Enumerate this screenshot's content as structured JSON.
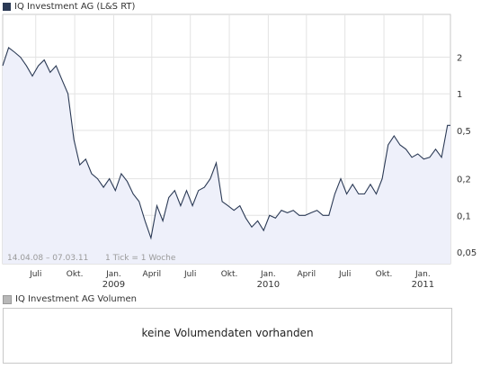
{
  "price_chart": {
    "legend_label": "IQ Investment AG (L&S RT)",
    "series_color": "#2b3a55",
    "fill_color": "#eef0fa",
    "date_range": "14.04.08 – 07.03.11",
    "tick_info": "1 Tick = 1 Woche"
  },
  "volume_chart": {
    "legend_label": "IQ Investment AG Volumen",
    "message": "keine Volumendaten vorhanden"
  },
  "chart_data": {
    "type": "area",
    "yscale": "log",
    "ylim": [
      0.04,
      4.5
    ],
    "xlim": [
      "2008-04-14",
      "2011-03-07"
    ],
    "grid": true,
    "yticks": [
      {
        "value": 2,
        "label": "2"
      },
      {
        "value": 1,
        "label": "1"
      },
      {
        "value": 0.5,
        "label": "0,5"
      },
      {
        "value": 0.2,
        "label": "0,2"
      },
      {
        "value": 0.1,
        "label": "0,1"
      },
      {
        "value": 0.05,
        "label": "0,05"
      }
    ],
    "xticks": [
      {
        "date": "2008-07-01",
        "label": "Juli"
      },
      {
        "date": "2008-10-01",
        "label": "Okt."
      },
      {
        "date": "2009-01-01",
        "label": "Jan.",
        "year": "2009"
      },
      {
        "date": "2009-04-01",
        "label": "April"
      },
      {
        "date": "2009-07-01",
        "label": "Juli"
      },
      {
        "date": "2009-10-01",
        "label": "Okt."
      },
      {
        "date": "2010-01-01",
        "label": "Jan.",
        "year": "2010"
      },
      {
        "date": "2010-04-01",
        "label": "April"
      },
      {
        "date": "2010-07-01",
        "label": "Juli"
      },
      {
        "date": "2010-10-01",
        "label": "Okt."
      },
      {
        "date": "2011-01-01",
        "label": "Jan.",
        "year": "2011"
      }
    ],
    "x": [
      "2008-04-14",
      "2008-04-28",
      "2008-05-12",
      "2008-05-26",
      "2008-06-09",
      "2008-06-23",
      "2008-07-07",
      "2008-07-21",
      "2008-08-04",
      "2008-08-18",
      "2008-09-01",
      "2008-09-15",
      "2008-09-29",
      "2008-10-13",
      "2008-10-27",
      "2008-11-10",
      "2008-11-24",
      "2008-12-08",
      "2008-12-22",
      "2009-01-05",
      "2009-01-19",
      "2009-02-02",
      "2009-02-16",
      "2009-03-02",
      "2009-03-16",
      "2009-03-30",
      "2009-04-13",
      "2009-04-27",
      "2009-05-11",
      "2009-05-25",
      "2009-06-08",
      "2009-06-22",
      "2009-07-06",
      "2009-07-20",
      "2009-08-03",
      "2009-08-17",
      "2009-08-31",
      "2009-09-14",
      "2009-09-28",
      "2009-10-12",
      "2009-10-26",
      "2009-11-09",
      "2009-11-23",
      "2009-12-07",
      "2009-12-21",
      "2010-01-04",
      "2010-01-18",
      "2010-02-01",
      "2010-02-15",
      "2010-03-01",
      "2010-03-15",
      "2010-03-29",
      "2010-04-12",
      "2010-04-26",
      "2010-05-10",
      "2010-05-24",
      "2010-06-07",
      "2010-06-21",
      "2010-07-05",
      "2010-07-19",
      "2010-08-02",
      "2010-08-16",
      "2010-08-30",
      "2010-09-13",
      "2010-09-27",
      "2010-10-11",
      "2010-10-25",
      "2010-11-08",
      "2010-11-22",
      "2010-12-06",
      "2010-12-20",
      "2011-01-03",
      "2011-01-17",
      "2011-01-31",
      "2011-02-14",
      "2011-02-28",
      "2011-03-07"
    ],
    "values": [
      1.7,
      2.4,
      2.2,
      2.0,
      1.7,
      1.4,
      1.7,
      1.9,
      1.5,
      1.7,
      1.3,
      1.0,
      0.42,
      0.26,
      0.29,
      0.22,
      0.2,
      0.17,
      0.2,
      0.16,
      0.22,
      0.19,
      0.15,
      0.13,
      0.09,
      0.065,
      0.12,
      0.09,
      0.14,
      0.16,
      0.12,
      0.16,
      0.12,
      0.16,
      0.17,
      0.2,
      0.27,
      0.13,
      0.12,
      0.11,
      0.12,
      0.095,
      0.08,
      0.09,
      0.075,
      0.1,
      0.095,
      0.11,
      0.105,
      0.11,
      0.1,
      0.1,
      0.105,
      0.11,
      0.1,
      0.1,
      0.15,
      0.2,
      0.15,
      0.18,
      0.15,
      0.15,
      0.18,
      0.15,
      0.2,
      0.38,
      0.45,
      0.38,
      0.35,
      0.3,
      0.32,
      0.29,
      0.3,
      0.35,
      0.3,
      0.55,
      0.55
    ]
  }
}
